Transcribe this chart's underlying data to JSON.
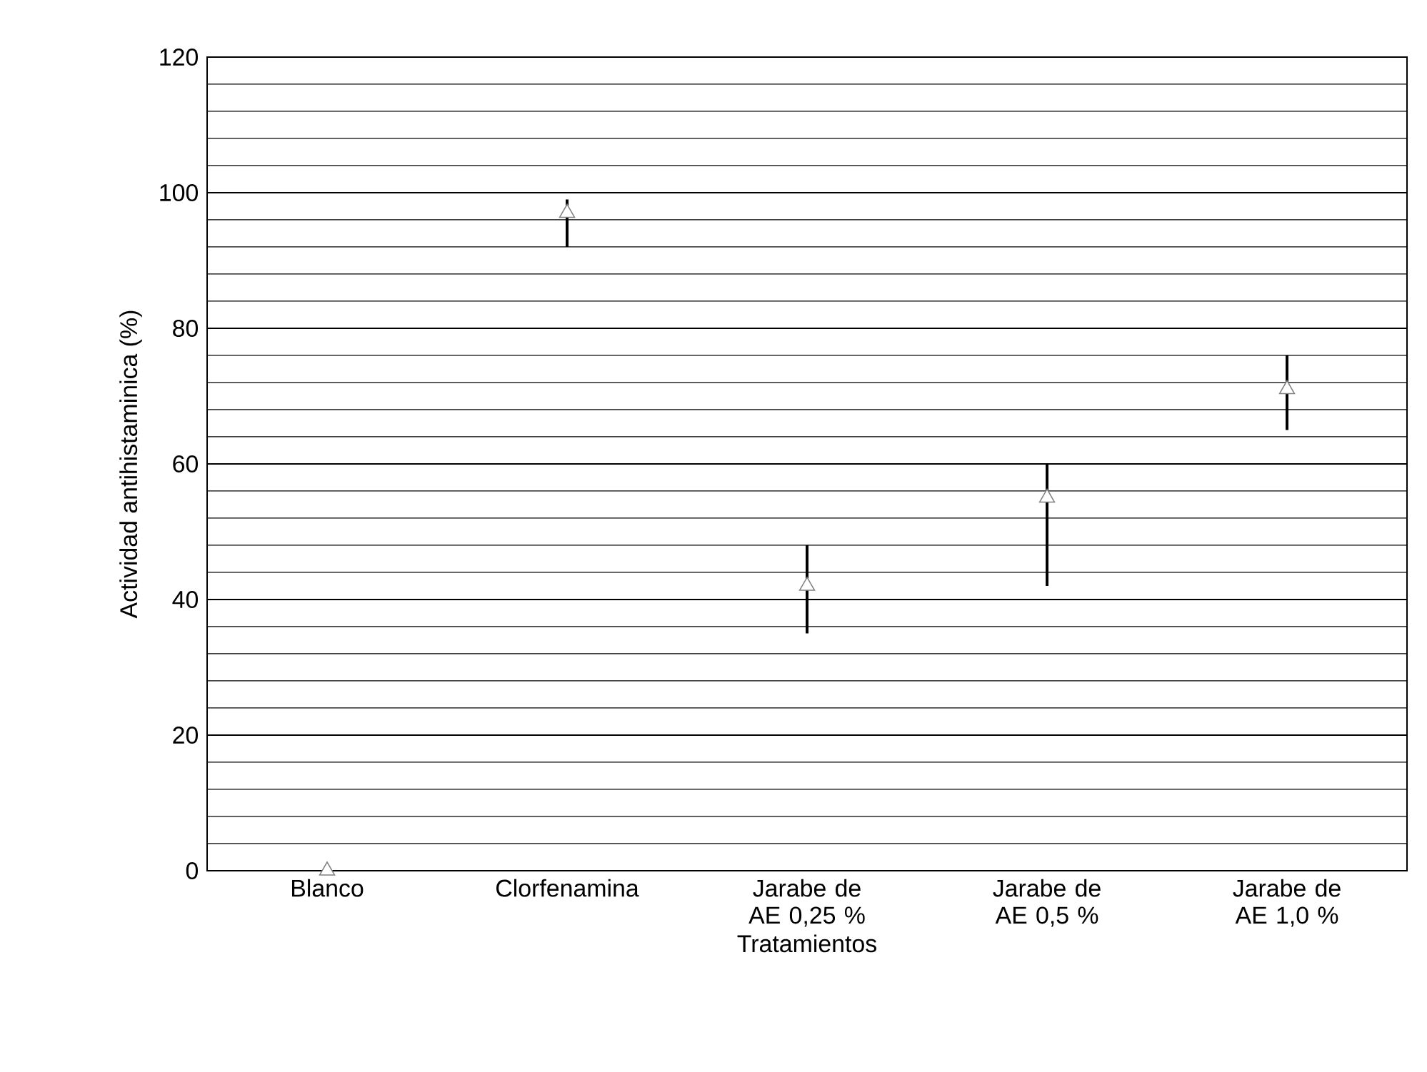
{
  "chart_data": {
    "type": "scatter",
    "xlabel": "Tratamientos",
    "ylabel": "Actividad antihistaminica (%)",
    "categories": [
      "Blanco",
      "Clorfenamina",
      "Jarabe de AE 0,25 %",
      "Jarabe de AE 0,5 %",
      "Jarabe de AE 1,0 %"
    ],
    "values": [
      0,
      97,
      42,
      55,
      71
    ],
    "errors": [
      null,
      [
        92,
        99
      ],
      [
        35,
        48
      ],
      [
        42,
        60
      ],
      [
        65,
        76
      ]
    ],
    "color": "#808080",
    "marker": "triangle",
    "ylim": [
      0,
      120
    ],
    "yticks": [
      0,
      20,
      40,
      60,
      80,
      100,
      120
    ],
    "grid": "y"
  }
}
